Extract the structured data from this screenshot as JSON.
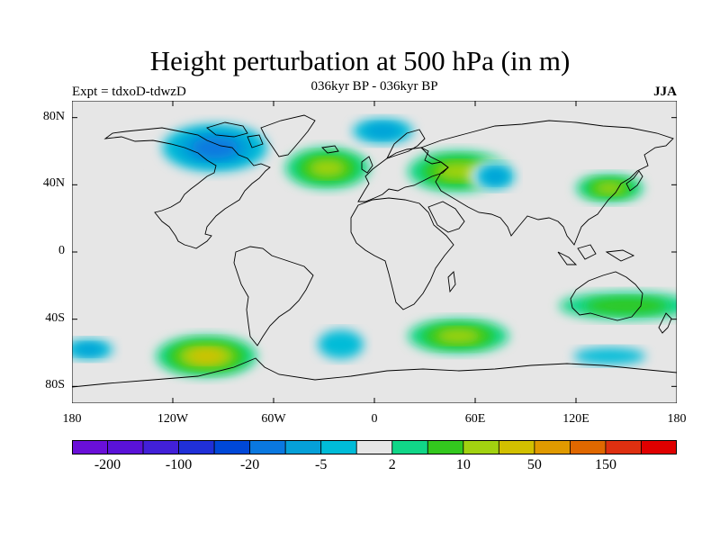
{
  "title": "Height perturbation at 500 hPa (in m)",
  "subtitle": "036kyr BP - 036kyr BP",
  "left_label": "Expt = tdxoD-tdwzD",
  "right_label": "JJA",
  "map": {
    "projection": "equirectangular",
    "lon_range": [
      -180,
      180
    ],
    "lat_range": [
      -90,
      90
    ],
    "lat_ticks": [
      {
        "value": 80,
        "label": "80N"
      },
      {
        "value": 40,
        "label": "40N"
      },
      {
        "value": 0,
        "label": "0"
      },
      {
        "value": -40,
        "label": "40S"
      },
      {
        "value": -80,
        "label": "80S"
      }
    ],
    "lon_ticks": [
      {
        "value": -180,
        "label": "180"
      },
      {
        "value": -120,
        "label": "120W"
      },
      {
        "value": -60,
        "label": "60W"
      },
      {
        "value": 0,
        "label": "0"
      },
      {
        "value": 60,
        "label": "60E"
      },
      {
        "value": 120,
        "label": "120E"
      },
      {
        "value": 180,
        "label": "180"
      }
    ],
    "background_color": "#e6e6e6",
    "coastline_color": "#000000"
  },
  "colorbar": {
    "colors": [
      "#6a0fd8",
      "#5a12d8",
      "#4220d8",
      "#2030d8",
      "#0048d8",
      "#0a78e0",
      "#05a0d8",
      "#00bcd8",
      "#e6e6e6",
      "#11d688",
      "#33c81e",
      "#a2d210",
      "#d2c000",
      "#e09a00",
      "#e06800",
      "#de3010",
      "#e00000"
    ],
    "levels": [
      -200,
      -150,
      -100,
      -50,
      -20,
      -10,
      -5,
      -2,
      2,
      5,
      10,
      20,
      50,
      100,
      150,
      200
    ],
    "labels": [
      {
        "value": -200,
        "text": "-200"
      },
      {
        "value": -100,
        "text": "-100"
      },
      {
        "value": -20,
        "text": "-20"
      },
      {
        "value": -5,
        "text": "-5"
      },
      {
        "value": 2,
        "text": "2"
      },
      {
        "value": 10,
        "text": "10"
      },
      {
        "value": 50,
        "text": "50"
      },
      {
        "value": 150,
        "text": "150"
      }
    ]
  },
  "field_anomalies": [
    {
      "name": "arctic-canada-low",
      "lon": -95,
      "lat": 62,
      "level": -20,
      "rx": 40,
      "ry": 18
    },
    {
      "name": "north-atlantic-high",
      "lon": -28,
      "lat": 50,
      "level": 10,
      "rx": 25,
      "ry": 12
    },
    {
      "name": "west-siberia-low",
      "lon": 5,
      "lat": 72,
      "level": -10,
      "rx": 25,
      "ry": 10
    },
    {
      "name": "europe-high",
      "lon": 50,
      "lat": 48,
      "level": 10,
      "rx": 30,
      "ry": 12
    },
    {
      "name": "central-asia-low",
      "lon": 72,
      "lat": 45,
      "level": -10,
      "rx": 16,
      "ry": 10
    },
    {
      "name": "east-asia-high",
      "lon": 140,
      "lat": 38,
      "level": 10,
      "rx": 20,
      "ry": 8
    },
    {
      "name": "south-pacific-high",
      "lon": -100,
      "lat": -62,
      "level": 20,
      "rx": 30,
      "ry": 12
    },
    {
      "name": "south-pacific-low",
      "lon": -170,
      "lat": -58,
      "level": -10,
      "rx": 20,
      "ry": 8
    },
    {
      "name": "south-atlantic-low",
      "lon": -20,
      "lat": -55,
      "level": -5,
      "rx": 22,
      "ry": 14
    },
    {
      "name": "south-indian-high",
      "lon": 50,
      "lat": -50,
      "level": 10,
      "rx": 30,
      "ry": 10
    },
    {
      "name": "australia-high",
      "lon": 150,
      "lat": -32,
      "level": 5,
      "rx": 40,
      "ry": 8
    },
    {
      "name": "south-ocean-low",
      "lon": 140,
      "lat": -62,
      "level": -5,
      "rx": 35,
      "ry": 8
    }
  ]
}
